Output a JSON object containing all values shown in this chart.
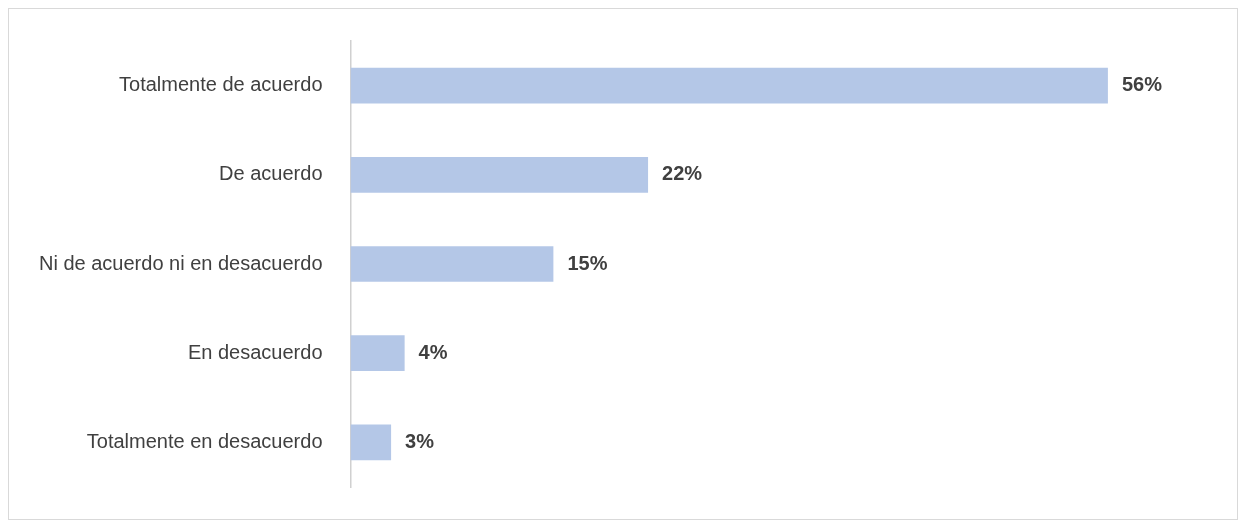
{
  "chart_data": {
    "type": "bar",
    "orientation": "horizontal",
    "categories": [
      "Totalmente de acuerdo",
      "De acuerdo",
      "Ni de acuerdo ni en desacuerdo",
      "En desacuerdo",
      "Totalmente en desacuerdo"
    ],
    "values": [
      56,
      22,
      15,
      4,
      3
    ],
    "value_labels": [
      "56%",
      "22%",
      "15%",
      "4%",
      "3%"
    ],
    "color": "#b4c7e7",
    "legend": false
  }
}
